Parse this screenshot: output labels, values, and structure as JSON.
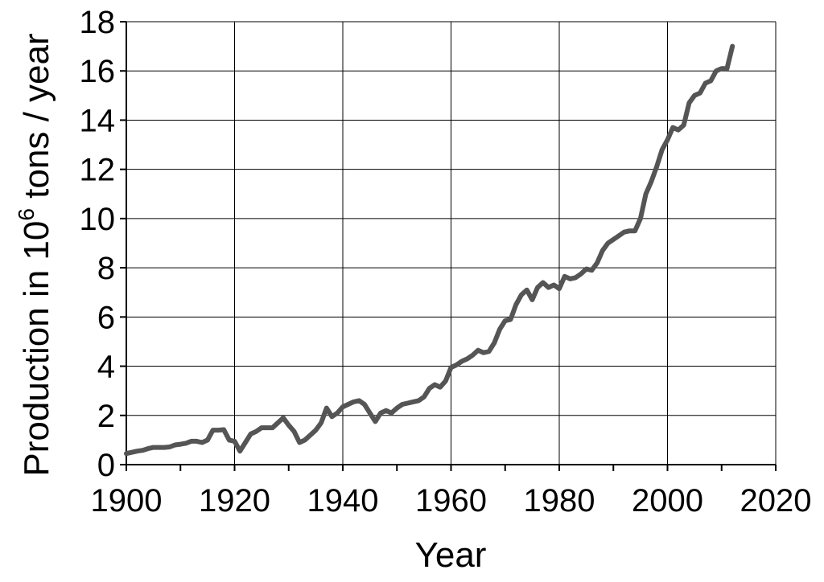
{
  "chart_data": {
    "type": "line",
    "title": "",
    "xlabel": "Year",
    "ylabel_main": "Production in 10",
    "ylabel_sup": "6",
    "ylabel_tail": " tons / year",
    "xlim": [
      1900,
      2020
    ],
    "ylim": [
      0,
      18
    ],
    "x_ticks": [
      "1900",
      "1920",
      "1940",
      "1960",
      "1980",
      "2000",
      "2020"
    ],
    "y_ticks": [
      "0",
      "2",
      "4",
      "6",
      "8",
      "10",
      "12",
      "14",
      "16",
      "18"
    ],
    "grid": true,
    "line_color": "#555555",
    "series": [
      {
        "x": [
          1900,
          1901,
          1902,
          1903,
          1904,
          1905,
          1906,
          1907,
          1908,
          1909,
          1910,
          1911,
          1912,
          1913,
          1914,
          1915,
          1916,
          1917,
          1918,
          1919,
          1920,
          1921,
          1922,
          1923,
          1924,
          1925,
          1926,
          1927,
          1928,
          1929,
          1930,
          1931,
          1932,
          1933,
          1934,
          1935,
          1936,
          1937,
          1938,
          1939,
          1940,
          1941,
          1942,
          1943,
          1944,
          1945,
          1946,
          1947,
          1948,
          1949,
          1950,
          1951,
          1952,
          1953,
          1954,
          1955,
          1956,
          1957,
          1958,
          1959,
          1960,
          1961,
          1962,
          1963,
          1964,
          1965,
          1966,
          1967,
          1968,
          1969,
          1970,
          1971,
          1972,
          1973,
          1974,
          1975,
          1976,
          1977,
          1978,
          1979,
          1980,
          1981,
          1982,
          1983,
          1984,
          1985,
          1986,
          1987,
          1988,
          1989,
          1990,
          1991,
          1992,
          1993,
          1994,
          1995,
          1996,
          1997,
          1998,
          1999,
          2000,
          2001,
          2002,
          2003,
          2004,
          2005,
          2006,
          2007,
          2008,
          2009,
          2010,
          2011,
          2012
        ],
        "values": [
          0.45,
          0.5,
          0.55,
          0.58,
          0.65,
          0.7,
          0.7,
          0.7,
          0.72,
          0.8,
          0.83,
          0.87,
          0.95,
          0.95,
          0.9,
          1.0,
          1.4,
          1.4,
          1.42,
          1.0,
          0.95,
          0.55,
          0.9,
          1.25,
          1.35,
          1.5,
          1.5,
          1.5,
          1.7,
          1.9,
          1.6,
          1.35,
          0.9,
          1.0,
          1.2,
          1.4,
          1.7,
          2.3,
          1.95,
          2.1,
          2.35,
          2.45,
          2.55,
          2.6,
          2.45,
          2.1,
          1.75,
          2.1,
          2.2,
          2.1,
          2.3,
          2.45,
          2.5,
          2.55,
          2.6,
          2.75,
          3.1,
          3.25,
          3.15,
          3.4,
          3.95,
          4.05,
          4.2,
          4.3,
          4.45,
          4.65,
          4.55,
          4.6,
          4.95,
          5.5,
          5.85,
          5.9,
          6.5,
          6.9,
          7.1,
          6.7,
          7.2,
          7.4,
          7.2,
          7.3,
          7.15,
          7.65,
          7.55,
          7.6,
          7.75,
          7.95,
          7.9,
          8.2,
          8.7,
          9.0,
          9.15,
          9.3,
          9.45,
          9.5,
          9.5,
          10.0,
          11.0,
          11.5,
          12.1,
          12.8,
          13.2,
          13.7,
          13.6,
          13.8,
          14.7,
          15.0,
          15.1,
          15.5,
          15.6,
          16.0,
          16.1,
          16.1,
          17.0
        ]
      }
    ]
  }
}
